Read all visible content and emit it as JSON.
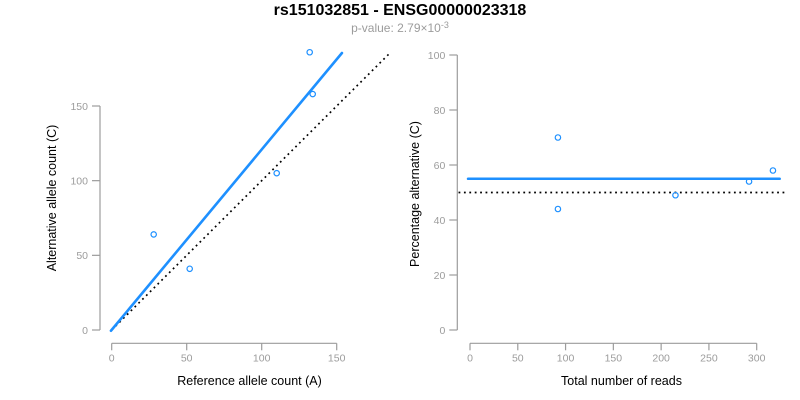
{
  "header": {
    "title": "rs151032851 - ENSG00000023318",
    "subtitle_base": "p-value: 2.79×10",
    "subtitle_exponent": "-3"
  },
  "colors": {
    "accent_blue": "#1E90FF",
    "axis_line": "#9C9C9C",
    "tick_label": "#9C9C9C",
    "axis_title": "#000000",
    "identity_black": "#000000",
    "title": "#000000",
    "subtitle_gray": "#9C9C9C"
  },
  "chart_data": [
    {
      "panel": "left",
      "type": "scatter",
      "xlabel": "Reference allele count (A)",
      "ylabel": "Alternative allele count (C)",
      "xticks": [
        0,
        50,
        100,
        150
      ],
      "yticks": [
        0,
        50,
        100,
        150
      ],
      "xlim": [
        -5,
        188
      ],
      "ylim": [
        -4,
        188
      ],
      "grid": false,
      "legend": null,
      "points": [
        [
          28,
          64
        ],
        [
          52,
          41
        ],
        [
          110,
          105
        ],
        [
          134,
          158
        ],
        [
          132,
          186
        ]
      ],
      "lines": [
        {
          "name": "identity-line",
          "style": "dotted",
          "color": "#000000",
          "from": [
            0,
            0
          ],
          "to": [
            186,
            186
          ]
        },
        {
          "name": "fit-line",
          "style": "solid",
          "color": "#1E90FF",
          "from": [
            -0.5,
            -0.5
          ],
          "to": [
            153.5,
            185.5
          ]
        }
      ]
    },
    {
      "panel": "right",
      "type": "scatter",
      "xlabel": "Total number of reads",
      "ylabel": "Percentage alternative (C)",
      "xticks": [
        0,
        50,
        100,
        150,
        200,
        250,
        300
      ],
      "yticks": [
        0,
        20,
        40,
        60,
        80,
        100
      ],
      "xlim": [
        -13,
        330
      ],
      "ylim": [
        -3,
        102
      ],
      "grid": false,
      "legend": null,
      "points": [
        [
          92,
          70
        ],
        [
          92,
          44
        ],
        [
          215,
          49
        ],
        [
          292,
          54
        ],
        [
          317,
          58
        ]
      ],
      "lines": [
        {
          "name": "expected-line",
          "style": "dotted",
          "color": "#000000",
          "from": [
            -12,
            50
          ],
          "to": [
            329,
            50
          ]
        },
        {
          "name": "mean-line",
          "style": "solid",
          "color": "#1E90FF",
          "from": [
            -2,
            55
          ],
          "to": [
            324,
            55
          ]
        }
      ]
    }
  ]
}
